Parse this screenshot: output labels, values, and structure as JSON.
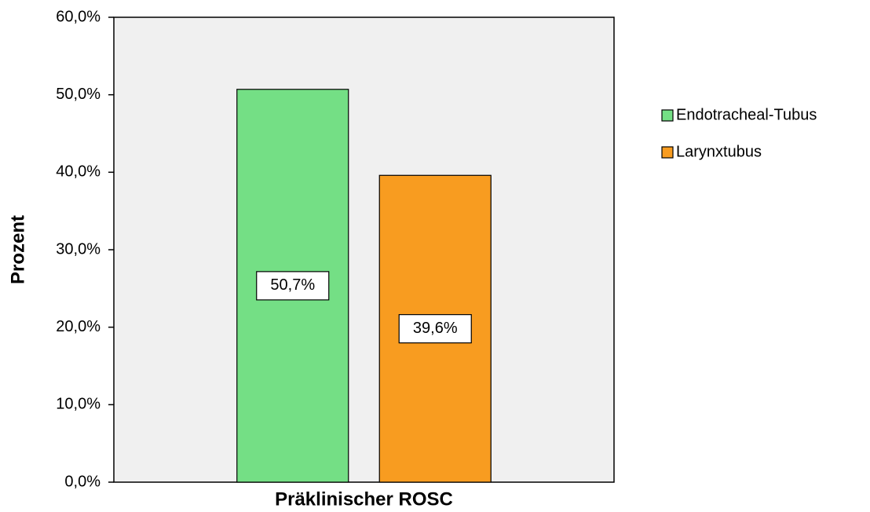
{
  "chart_data": {
    "type": "bar",
    "categories": [
      "Präklinischer ROSC"
    ],
    "series": [
      {
        "name": "Endotracheal-Tubus",
        "color": "#74df85",
        "values": [
          50.7
        ],
        "value_labels": [
          "50,7%"
        ]
      },
      {
        "name": "Larynxtubus",
        "color": "#f89c20",
        "values": [
          39.6
        ],
        "value_labels": [
          "39,6%"
        ]
      }
    ],
    "y_label": "Prozent",
    "ylim": [
      0,
      60
    ],
    "yticks": [
      {
        "value": 0,
        "label": "0,0%"
      },
      {
        "value": 10,
        "label": "10,0%"
      },
      {
        "value": 20,
        "label": "20,0%"
      },
      {
        "value": 30,
        "label": "30,0%"
      },
      {
        "value": 40,
        "label": "40,0%"
      },
      {
        "value": 50,
        "label": "50,0%"
      },
      {
        "value": 60,
        "label": "60,0%"
      }
    ],
    "legend": "right"
  }
}
